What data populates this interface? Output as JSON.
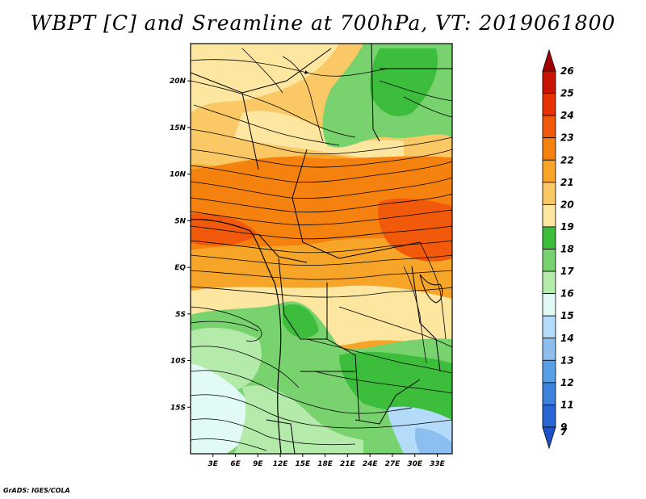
{
  "title": "WBPT [C] and Sreamline at 700hPa, VT: 2019061800",
  "footer": "GrADS: IGES/COLA",
  "map": {
    "lon_range": [
      0,
      35
    ],
    "lat_range": [
      -20,
      24
    ],
    "lat_ticks": [
      {
        "value": 20,
        "label": "20N"
      },
      {
        "value": 15,
        "label": "15N"
      },
      {
        "value": 10,
        "label": "10N"
      },
      {
        "value": 5,
        "label": "5N"
      },
      {
        "value": 0,
        "label": "EQ"
      },
      {
        "value": -5,
        "label": "5S"
      },
      {
        "value": -10,
        "label": "10S"
      },
      {
        "value": -15,
        "label": "15S"
      }
    ],
    "lon_ticks": [
      {
        "value": 3,
        "label": "3E"
      },
      {
        "value": 6,
        "label": "6E"
      },
      {
        "value": 9,
        "label": "9E"
      },
      {
        "value": 12,
        "label": "12E"
      },
      {
        "value": 15,
        "label": "15E"
      },
      {
        "value": 18,
        "label": "18E"
      },
      {
        "value": 21,
        "label": "21E"
      },
      {
        "value": 24,
        "label": "24E"
      },
      {
        "value": 27,
        "label": "27E"
      },
      {
        "value": 30,
        "label": "30E"
      },
      {
        "value": 33,
        "label": "33E"
      }
    ]
  },
  "colorbar": {
    "labels": [
      "26",
      "25",
      "24",
      "23",
      "22",
      "21",
      "20",
      "19",
      "18",
      "17",
      "16",
      "15",
      "14",
      "13",
      "12",
      "11",
      "9",
      "7"
    ],
    "colors": [
      "#a00000",
      "#c81400",
      "#e63200",
      "#f05a0a",
      "#f5820f",
      "#f7a528",
      "#fac864",
      "#fde6a0",
      "#3cbe3c",
      "#78d26e",
      "#b4ebaa",
      "#e1faf5",
      "#b4dcfa",
      "#8cbef0",
      "#5aa0e6",
      "#3c82dc",
      "#2864d2",
      "#1e50c8"
    ]
  }
}
